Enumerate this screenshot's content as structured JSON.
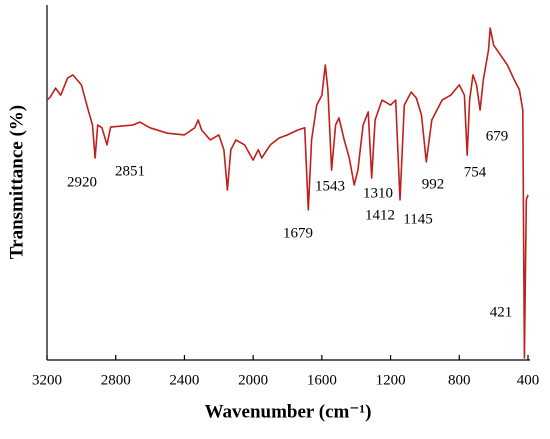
{
  "chart_data": {
    "type": "line",
    "xlabel": "Wavenumber (cm⁻¹)",
    "ylabel": "Transmittance (%)",
    "xlim": [
      3200,
      400
    ],
    "xticks": [
      3200,
      2800,
      2400,
      2000,
      1600,
      1200,
      800,
      400
    ],
    "ylim": [
      0,
      100
    ],
    "series": [
      {
        "color": "#c0201a",
        "x": [
          3200,
          3180,
          3150,
          3120,
          3080,
          3050,
          3000,
          2960,
          2935,
          2920,
          2905,
          2880,
          2851,
          2830,
          2700,
          2660,
          2600,
          2500,
          2400,
          2340,
          2320,
          2300,
          2250,
          2200,
          2170,
          2150,
          2130,
          2100,
          2050,
          2000,
          1970,
          1950,
          1900,
          1850,
          1800,
          1740,
          1700,
          1679,
          1660,
          1630,
          1600,
          1580,
          1565,
          1543,
          1520,
          1500,
          1470,
          1440,
          1412,
          1390,
          1360,
          1330,
          1310,
          1290,
          1250,
          1200,
          1170,
          1145,
          1120,
          1080,
          1050,
          1020,
          992,
          960,
          900,
          850,
          800,
          770,
          754,
          740,
          720,
          700,
          679,
          660,
          630,
          620,
          600,
          560,
          520,
          480,
          450,
          430,
          421,
          410,
          400
        ],
        "values": [
          73.2,
          74.1,
          76.6,
          74.6,
          79.4,
          80.3,
          77.5,
          70.4,
          66.2,
          56.9,
          66.2,
          65.4,
          60.6,
          65.6,
          66.2,
          67.0,
          65.4,
          63.9,
          63.4,
          65.4,
          67.6,
          64.8,
          62.0,
          63.4,
          59.2,
          47.9,
          59.2,
          62.0,
          60.6,
          56.3,
          59.2,
          56.9,
          60.6,
          62.5,
          63.4,
          64.8,
          65.4,
          42.3,
          62.0,
          71.8,
          74.6,
          83.1,
          76.1,
          53.5,
          66.2,
          68.2,
          62.0,
          56.9,
          49.3,
          53.5,
          66.2,
          69.9,
          51.3,
          67.6,
          73.2,
          71.8,
          73.2,
          45.1,
          71.8,
          75.5,
          73.8,
          69.0,
          55.8,
          67.6,
          73.2,
          74.6,
          77.5,
          74.6,
          57.7,
          73.2,
          80.3,
          77.5,
          70.4,
          78.9,
          87.3,
          93.5,
          88.7,
          85.9,
          83.1,
          78.9,
          76.1,
          70.4,
          0.6,
          45.1,
          46.5
        ]
      }
    ],
    "annotations": [
      "2920",
      "2851",
      "1679",
      "1543",
      "1412",
      "1310",
      "1145",
      "992",
      "754",
      "679",
      "421"
    ]
  }
}
